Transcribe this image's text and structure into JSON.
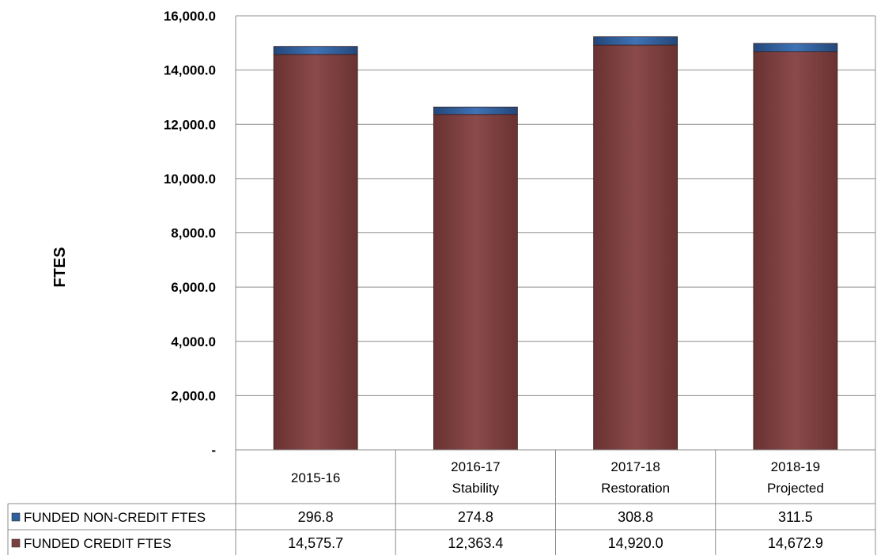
{
  "chart_data": {
    "type": "bar",
    "stacked": true,
    "ylabel": "FTES",
    "ylim": [
      0,
      16000
    ],
    "yticks": [
      "-",
      "2,000.0",
      "4,000.0",
      "6,000.0",
      "8,000.0",
      "10,000.0",
      "12,000.0",
      "14,000.0",
      "16,000.0"
    ],
    "grid": true,
    "categories": [
      [
        "2015-16"
      ],
      [
        "2016-17",
        "Stability"
      ],
      [
        "2017-18",
        "Restoration"
      ],
      [
        "2018-19",
        "Projected"
      ]
    ],
    "series": [
      {
        "name": "FUNDED CREDIT FTES",
        "color": "#7b3f3f",
        "values": [
          14575.7,
          12363.4,
          14920.0,
          14672.9
        ],
        "labels": [
          "14,575.7",
          "12,363.4",
          "14,920.0",
          "14,672.9"
        ]
      },
      {
        "name": "FUNDED NON-CREDIT FTES",
        "color": "#2e5f9e",
        "values": [
          296.8,
          274.8,
          308.8,
          311.5
        ],
        "labels": [
          "296.8",
          "274.8",
          "308.8",
          "311.5"
        ]
      }
    ],
    "legend": "data-table-left"
  }
}
